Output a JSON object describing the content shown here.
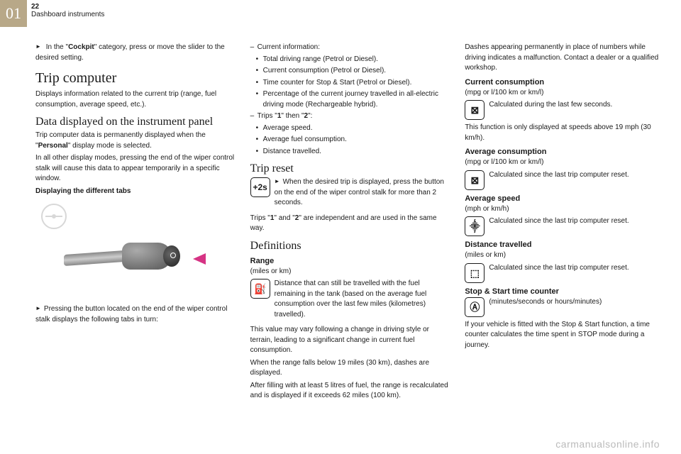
{
  "header": {
    "chapter": "01",
    "page": "22",
    "section": "Dashboard instruments"
  },
  "col_text": {
    "cockpit_line": "In the \"",
    "cockpit_bold": "Cockpit",
    "cockpit_rest": "\" category, press or move the slider to the desired setting.",
    "h_trip_comp": "Trip computer",
    "trip_comp_p": "Displays information related to the current trip (range, fuel consumption, average speed, etc.).",
    "h_data_disp": "Data displayed on the instrument panel",
    "data_disp_p1a": "Trip computer data is permanently displayed when the \"",
    "data_disp_p1b": "Personal",
    "data_disp_p1c": "\" display mode is selected.",
    "data_disp_p2": "In all other display modes, pressing the end of the wiper control stalk will cause this data to appear temporarily in a specific window.",
    "displaying_tabs": "Displaying the different tabs",
    "press_button": "Pressing the button located on the end of the wiper control stalk displays the following tabs in turn:",
    "li_current_info": "Current information:",
    "li_total_range": "Total driving range (Petrol or Diesel).",
    "li_curr_cons": "Current consumption (Petrol or Diesel).",
    "li_time_counter": "Time counter for Stop & Start (Petrol or Diesel).",
    "li_percentage": "Percentage of the current journey travelled in all-electric driving mode (Rechargeable hybrid).",
    "li_trips12a": "Trips \"",
    "li_trips12b": "1",
    "li_trips12c": "\" then \"",
    "li_trips12d": "2",
    "li_trips12e": "\":",
    "li_avg_speed": "Average speed.",
    "li_avg_fuel": "Average fuel consumption.",
    "li_dist_trav": "Distance travelled.",
    "h_trip_reset": "Trip reset",
    "icon_2s": "+2s",
    "trip_reset_p": "When the desired trip is displayed, press the button on the end of the wiper control stalk for more than 2 seconds.",
    "trips_indep_a": "Trips \"",
    "trips_indep_b": "1",
    "trips_indep_c": "\" and \"",
    "trips_indep_d": "2",
    "trips_indep_e": "\" are independent and are used in the same way.",
    "h_definitions": "Definitions",
    "h_range": "Range",
    "range_unit": "(miles or km)",
    "range_p1": "Distance that can still be travelled with the fuel remaining in the tank (based on the average fuel consumption over the last few miles (kilometres) travelled).",
    "range_p2": "This value may vary following a change in driving style or terrain, leading to a significant change in current fuel consumption.",
    "range_p3": "When the range falls below 19 miles (30 km), dashes are displayed.",
    "range_p4": "After filling with at least 5 litres of fuel, the range is recalculated and is displayed if it exceeds 62 miles (100 km).",
    "dashes_p": "Dashes appearing permanently in place of numbers while driving indicates a malfunction. Contact a dealer or a qualified workshop.",
    "h_curr_cons": "Current consumption",
    "cc_unit": "(mpg or l/100 km or km/l)",
    "cc_p": "Calculated during the last few seconds.",
    "cc_note": "This function is only displayed at speeds above 19 mph (30 km/h).",
    "h_avg_cons": "Average consumption",
    "ac_unit": "(mpg or l/100 km or km/l)",
    "ac_p": "Calculated since the last trip computer reset.",
    "h_avg_speed": "Average speed",
    "as_unit": "(mph or km/h)",
    "as_p": "Calculated since the last trip computer reset.",
    "h_dist": "Distance travelled",
    "dist_unit": "(miles or km)",
    "dist_p": "Calculated since the last trip computer reset.",
    "h_stop": "Stop & Start time counter",
    "stop_unit": "(minutes/seconds or hours/minutes)",
    "stop_p": "If your vehicle is fitted with the Stop & Start function, a time counter calculates the time spent in STOP mode during a journey."
  },
  "icons": {
    "fuel": "⛽",
    "gauge1": "⊠",
    "gauge2": "⊠",
    "speedo": "⸎",
    "odo": "⬚",
    "timer": "Ⓐ"
  },
  "watermark": "carmanualsonline.info"
}
